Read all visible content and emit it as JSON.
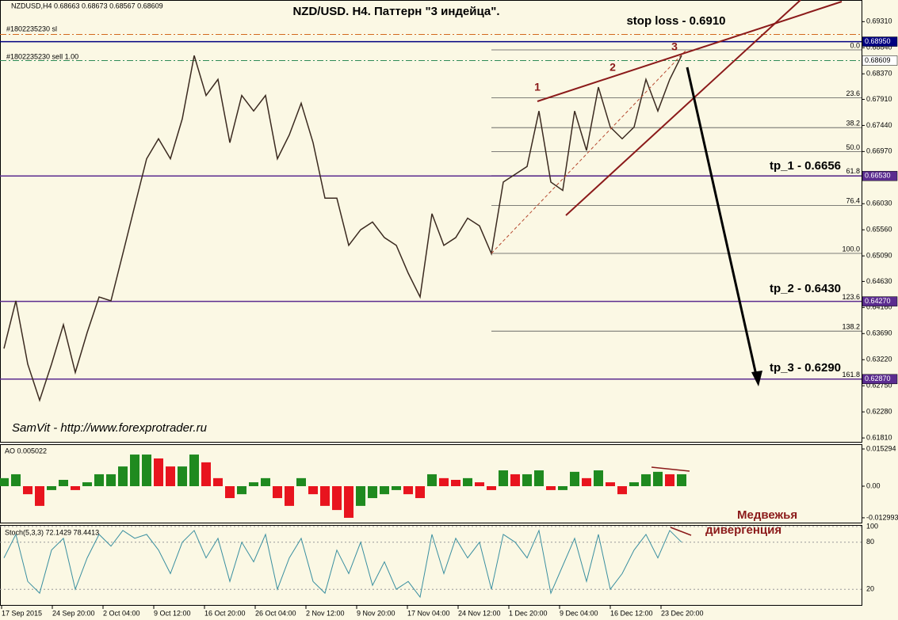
{
  "chart_data": {
    "type": "line",
    "title": "NZD/USD. H4. Паттерн \"3 индейца\".",
    "symbol_info": "NZDUSD,H4  0.68663 0.68673 0.68567 0.68609",
    "color": "#3b2a20",
    "values": [
      0.6342,
      0.6428,
      0.6314,
      0.6249,
      0.6314,
      0.6385,
      0.6299,
      0.6371,
      0.6435,
      0.6428,
      0.6513,
      0.6599,
      0.6684,
      0.672,
      0.6684,
      0.6756,
      0.687,
      0.6798,
      0.6827,
      0.6713,
      0.6798,
      0.677,
      0.6798,
      0.6684,
      0.6727,
      0.6784,
      0.6713,
      0.6613,
      0.6613,
      0.6528,
      0.6556,
      0.657,
      0.6542,
      0.6528,
      0.6478,
      0.6435,
      0.6585,
      0.6528,
      0.6542,
      0.6577,
      0.6563,
      0.6513,
      0.6642,
      0.6656,
      0.667,
      0.677,
      0.6642,
      0.6627,
      0.677,
      0.6699,
      0.6813,
      0.6741,
      0.672,
      0.6741,
      0.6827,
      0.677,
      0.6827,
      0.687
    ],
    "ylim": [
      0.6174,
      0.697
    ],
    "yticks": [
      {
        "value": 0.6931,
        "label": "0.69310"
      },
      {
        "value": 0.6884,
        "label": "0.68840"
      },
      {
        "value": 0.6837,
        "label": "0.68370"
      },
      {
        "value": 0.6791,
        "label": "0.67910"
      },
      {
        "value": 0.6744,
        "label": "0.67440"
      },
      {
        "value": 0.6697,
        "label": "0.66970"
      },
      {
        "value": 0.665,
        "label": "0.66500"
      },
      {
        "value": 0.6603,
        "label": "0.66030"
      },
      {
        "value": 0.6556,
        "label": "0.65560"
      },
      {
        "value": 0.6509,
        "label": "0.65090"
      },
      {
        "value": 0.6463,
        "label": "0.64630"
      },
      {
        "value": 0.6416,
        "label": "0.64160"
      },
      {
        "value": 0.6369,
        "label": "0.63690"
      },
      {
        "value": 0.6322,
        "label": "0.63220"
      },
      {
        "value": 0.6275,
        "label": "0.62750"
      },
      {
        "value": 0.6228,
        "label": "0.62280"
      },
      {
        "value": 0.6181,
        "label": "0.61810"
      }
    ],
    "x_labels": [
      "17 Sep 2015",
      "24 Sep 20:00",
      "2 Oct 04:00",
      "9 Oct 12:00",
      "16 Oct 20:00",
      "26 Oct 04:00",
      "2 Nov 12:00",
      "9 Nov 20:00",
      "17 Nov 04:00",
      "24 Nov 12:00",
      "1 Dec 20:00",
      "9 Dec 04:00",
      "16 Dec 12:00",
      "23 Dec 20:00"
    ],
    "levels": [
      {
        "value": 0.6908,
        "color": "#d2691e",
        "style": "dashdot"
      },
      {
        "value": 0.6895,
        "label": "0.68950",
        "color": "#000080",
        "style": "solid"
      },
      {
        "value": 0.68609,
        "label": "0.68609",
        "color": "#2e8b57",
        "style": "dashdot"
      },
      {
        "value": 0.6653,
        "label": "0.66530",
        "color": "#5b2c8f",
        "style": "solid"
      },
      {
        "value": 0.6427,
        "label": "0.64270",
        "color": "#5b2c8f",
        "style": "solid"
      },
      {
        "value": 0.6287,
        "label": "0.62870",
        "color": "#5b2c8f",
        "style": "solid"
      }
    ],
    "fib_levels": [
      {
        "value": 0,
        "label": "0.0"
      },
      23.6,
      38.2,
      {
        "value": 50,
        "label": "50.0"
      },
      61.8,
      76.4,
      {
        "value": 100,
        "label": "100.0"
      },
      123.6,
      138.2,
      161.8
    ],
    "annotations": {
      "stop_loss": "stop loss - 0.6910",
      "sl_order": "#1802235230 sl",
      "sell_order": "#1802235230 sell 1.00",
      "tp_1": "tp_1 - 0.6656",
      "tp_2": "tp_2 - 0.6430",
      "tp_3": "tp_3 - 0.6290",
      "point_1": "1",
      "point_2": "2",
      "point_3": "3",
      "author": "SamVit - http://www.forexprotrader.ru",
      "divergence": [
        "Медвежья",
        "дивергенция"
      ]
    },
    "ao": {
      "header": "AO 0.005022",
      "ylim": [
        -0.01497,
        0.01692
      ],
      "yticks": [
        0.015294,
        {
          "value": 0,
          "label": "0.00"
        },
        -0.012993
      ],
      "up_color": "#1f8a1f",
      "down_color": "#e8141e",
      "values": [
        0.0033,
        0.0049,
        -0.0033,
        -0.0081,
        -0.0016,
        0.0026,
        -0.0016,
        0.0016,
        0.0049,
        0.0049,
        0.0081,
        0.013,
        0.013,
        0.0114,
        0.0081,
        0.0081,
        0.013,
        0.0098,
        0.0033,
        -0.0049,
        -0.0033,
        0.0016,
        0.0033,
        -0.0049,
        -0.0081,
        0.0033,
        -0.0033,
        -0.0081,
        -0.0098,
        -0.013,
        -0.0081,
        -0.0049,
        -0.0033,
        -0.0016,
        -0.0033,
        -0.0049,
        0.0049,
        0.0033,
        0.0026,
        0.0033,
        0.0016,
        -0.0016,
        0.0065,
        0.0049,
        0.0049,
        0.0065,
        -0.0016,
        -0.0016,
        0.0059,
        0.0033,
        0.0065,
        0.0016,
        -0.0033,
        0.0016,
        0.0049,
        0.0059,
        0.0049,
        0.0049
      ]
    },
    "stoch": {
      "header": "Stoch(5,3,3) 72.1429 78.4413",
      "ylim": [
        -1,
        101
      ],
      "yticks": [
        100,
        80,
        20
      ],
      "color": "#3a8fa0",
      "values": [
        60,
        90,
        30,
        15,
        70,
        85,
        20,
        60,
        90,
        75,
        95,
        85,
        90,
        70,
        40,
        80,
        95,
        60,
        85,
        30,
        80,
        55,
        90,
        20,
        60,
        85,
        30,
        15,
        70,
        40,
        80,
        25,
        55,
        20,
        30,
        10,
        90,
        40,
        85,
        60,
        80,
        20,
        90,
        80,
        60,
        95,
        15,
        50,
        85,
        30,
        90,
        20,
        40,
        70,
        90,
        60,
        95,
        80
      ]
    }
  }
}
